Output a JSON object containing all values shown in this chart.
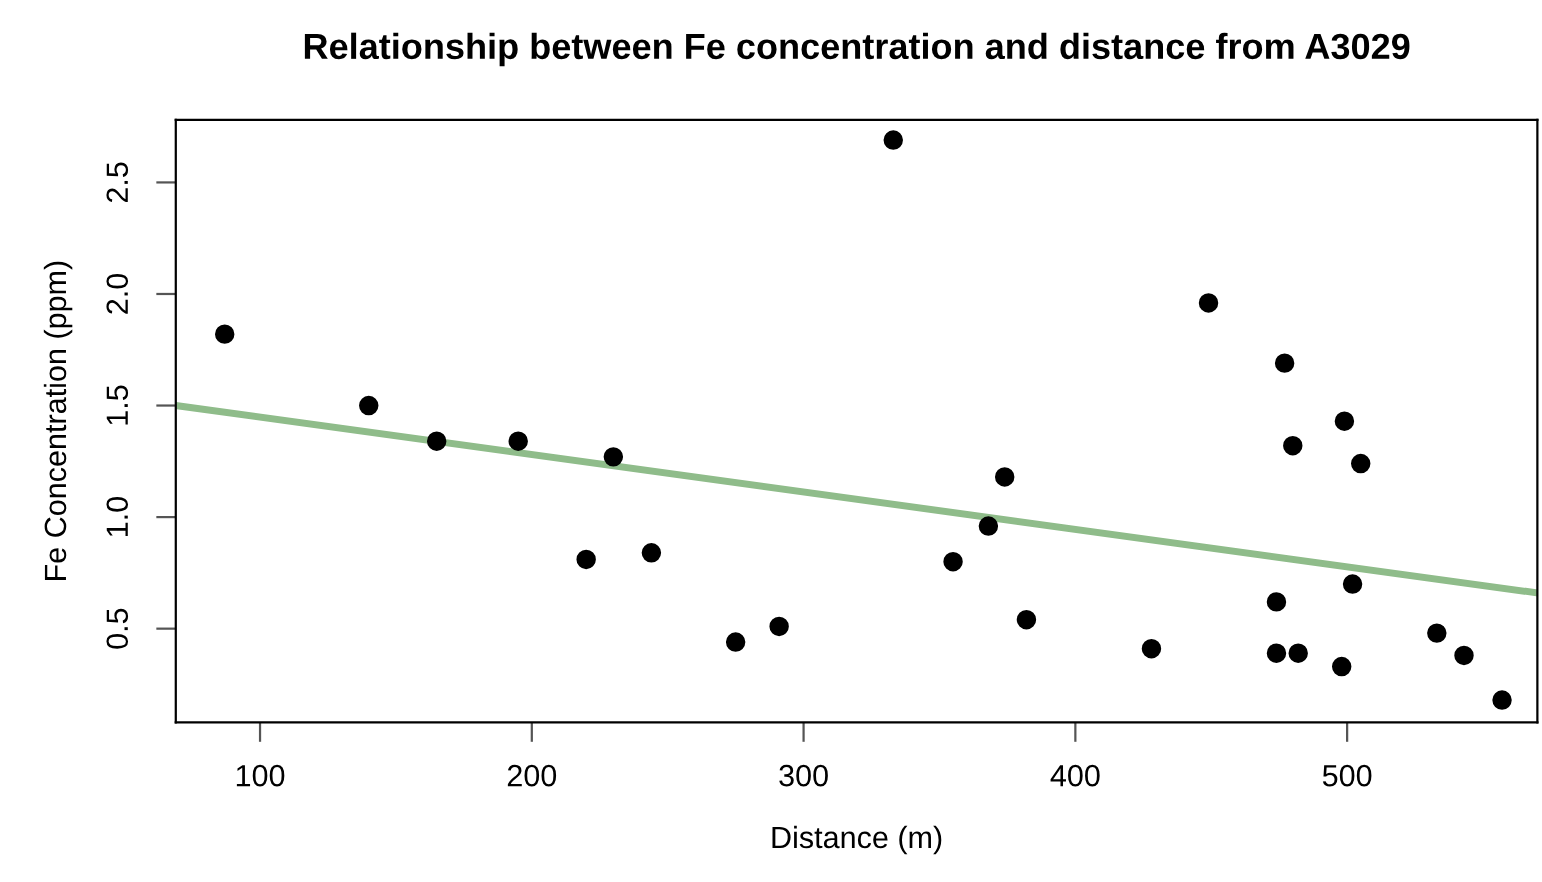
{
  "chart_data": {
    "type": "scatter",
    "title": "Relationship between Fe concentration and distance from A3029",
    "xlabel": "Distance (m)",
    "ylabel": "Fe Concentration (ppm)",
    "xlim": [
      69,
      570
    ],
    "ylim": [
      0.08,
      2.78
    ],
    "xticks": [
      100,
      200,
      300,
      400,
      500
    ],
    "yticks": [
      0.5,
      {
        "value": 1,
        "label": "1.0"
      },
      1.5,
      {
        "value": 2,
        "label": "2.0"
      },
      2.5
    ],
    "grid": false,
    "legend": false,
    "marker": "circle",
    "series": [
      {
        "color": "#000000",
        "x": [
          87,
          140,
          165,
          195,
          230,
          220,
          244,
          275,
          291,
          333,
          374,
          368,
          355,
          382,
          428,
          449,
          477,
          480,
          499,
          505,
          474,
          502,
          474,
          482,
          498,
          533,
          543,
          557
        ],
        "values": [
          1.82,
          1.5,
          1.34,
          1.34,
          1.27,
          0.81,
          0.84,
          0.44,
          0.51,
          2.69,
          1.18,
          0.96,
          0.8,
          0.54,
          0.41,
          1.96,
          1.69,
          1.32,
          1.43,
          1.24,
          0.62,
          0.7,
          0.39,
          0.39,
          0.33,
          0.48,
          0.38,
          0.18
        ]
      },
      {
        "type": "line",
        "color": "#8fbc8a",
        "x": [
          69,
          570
        ],
        "values": [
          1.5,
          0.66
        ],
        "line_style": "solid",
        "marker": "none"
      }
    ]
  }
}
